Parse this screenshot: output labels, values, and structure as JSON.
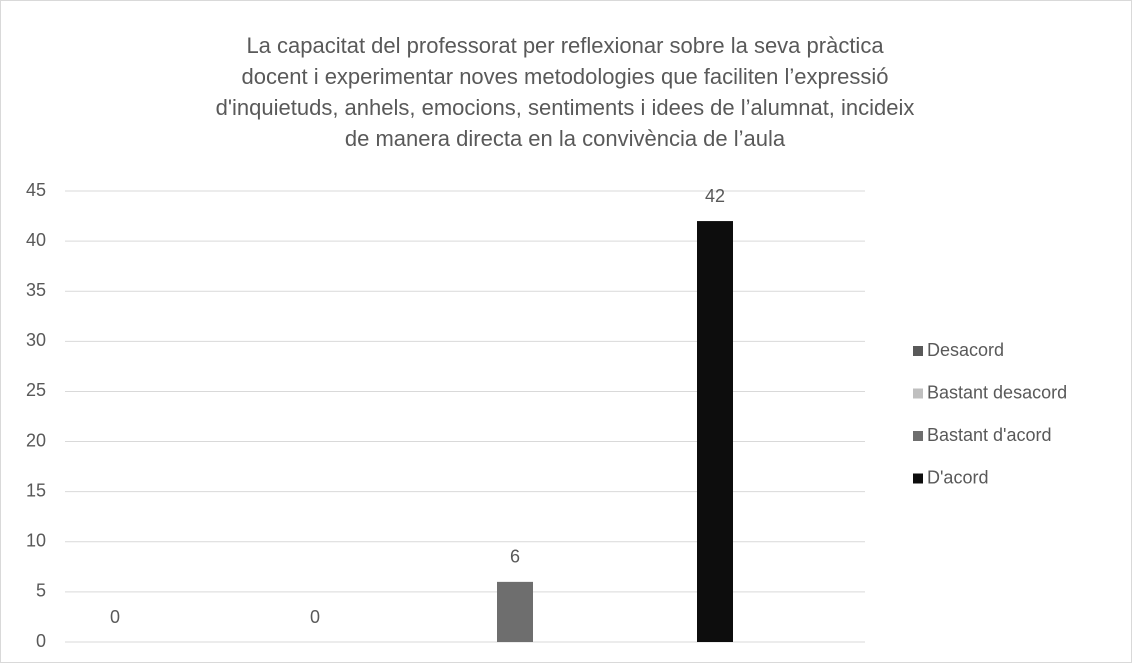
{
  "chart_data": {
    "type": "bar",
    "title": [
      "La capacitat del professorat per reflexionar sobre la seva pràctica",
      "docent i experimentar noves metodologies que faciliten l’expressió",
      "d'inquietuds, anhels, emocions, sentiments i idees de l’alumnat, incideix",
      "de manera directa en la convivència de l’aula"
    ],
    "categories": [
      null
    ],
    "series": [
      {
        "name": "Desacord",
        "color": "#595959",
        "values": [
          0
        ]
      },
      {
        "name": "Bastant desacord",
        "color": "#bfbfbf",
        "values": [
          0
        ]
      },
      {
        "name": "Bastant d'acord",
        "color": "#6e6e6e",
        "values": [
          6
        ]
      },
      {
        "name": "D'acord",
        "color": "#0d0d0d",
        "values": [
          42
        ]
      }
    ],
    "ylim": [
      0,
      45
    ],
    "yticks": [
      0,
      5,
      10,
      15,
      20,
      25,
      30,
      35,
      40,
      45
    ],
    "grid": true,
    "legend": "right"
  }
}
